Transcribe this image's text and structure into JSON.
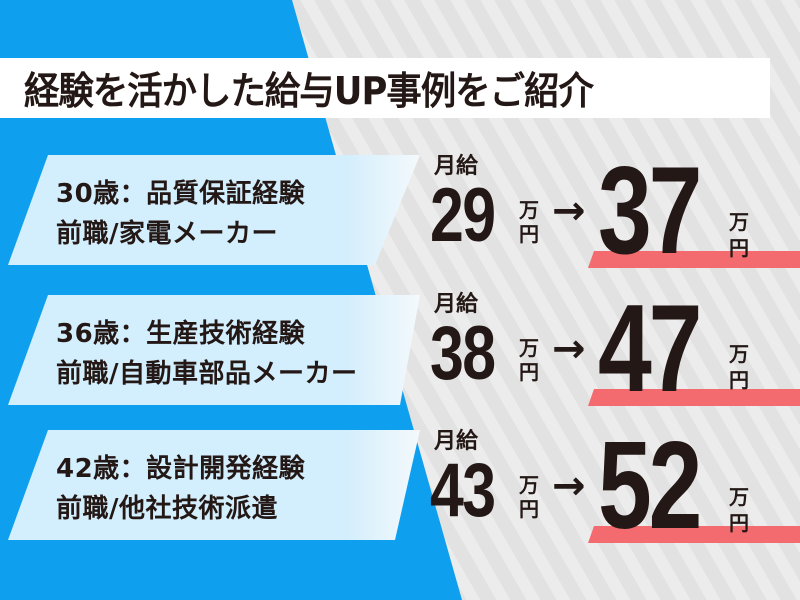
{
  "title": "経験を活かした給与UP事例をご紹介",
  "colors": {
    "blue": "#0e9fee",
    "card": "#d3eefc",
    "highlight": "#f36b6f",
    "text": "#231815",
    "background": "#e3e3e3"
  },
  "cases": [
    {
      "line1": "30歳：品質保証経験",
      "line2": "前職/家電メーカー",
      "label": "月給",
      "before": "29",
      "after": "37",
      "unit_top": "万",
      "unit_bottom": "円",
      "arrow": "→"
    },
    {
      "line1": "36歳：生産技術経験",
      "line2": "前職/自動車部品メーカー",
      "label": "月給",
      "before": "38",
      "after": "47",
      "unit_top": "万",
      "unit_bottom": "円",
      "arrow": "→"
    },
    {
      "line1": "42歳：設計開発経験",
      "line2": "前職/他社技術派遣",
      "label": "月給",
      "before": "43",
      "after": "52",
      "unit_top": "万",
      "unit_bottom": "円",
      "arrow": "→"
    }
  ]
}
